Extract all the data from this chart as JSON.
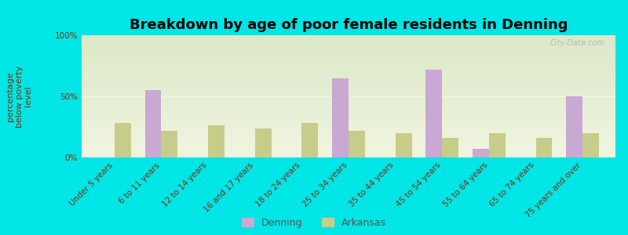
{
  "title": "Breakdown by age of poor female residents in Denning",
  "ylabel": "percentage\nbelow poverty\nlevel",
  "categories": [
    "Under 5 years",
    "6 to 11 years",
    "12 to 14 years",
    "16 and 17 years",
    "18 to 24 years",
    "25 to 34 years",
    "35 to 44 years",
    "45 to 54 years",
    "55 to 64 years",
    "65 to 74 years",
    "75 years and over"
  ],
  "denning_values": [
    0,
    55,
    0,
    0,
    0,
    65,
    0,
    72,
    7,
    0,
    50
  ],
  "arkansas_values": [
    28,
    22,
    26,
    24,
    28,
    22,
    20,
    16,
    20,
    16,
    20
  ],
  "denning_color": "#c9a8d4",
  "arkansas_color": "#c8cc8a",
  "background_color": "#00e5e5",
  "plot_bg_top": "#dce8c8",
  "plot_bg_bottom": "#f0f5e0",
  "ylim": [
    0,
    100
  ],
  "yticks": [
    0,
    50,
    100
  ],
  "ytick_labels": [
    "0%",
    "50%",
    "100%"
  ],
  "bar_width": 0.35,
  "title_fontsize": 13,
  "ylabel_fontsize": 8,
  "tick_fontsize": 7.5,
  "legend_labels": [
    "Denning",
    "Arkansas"
  ],
  "watermark": "City-Data.com"
}
